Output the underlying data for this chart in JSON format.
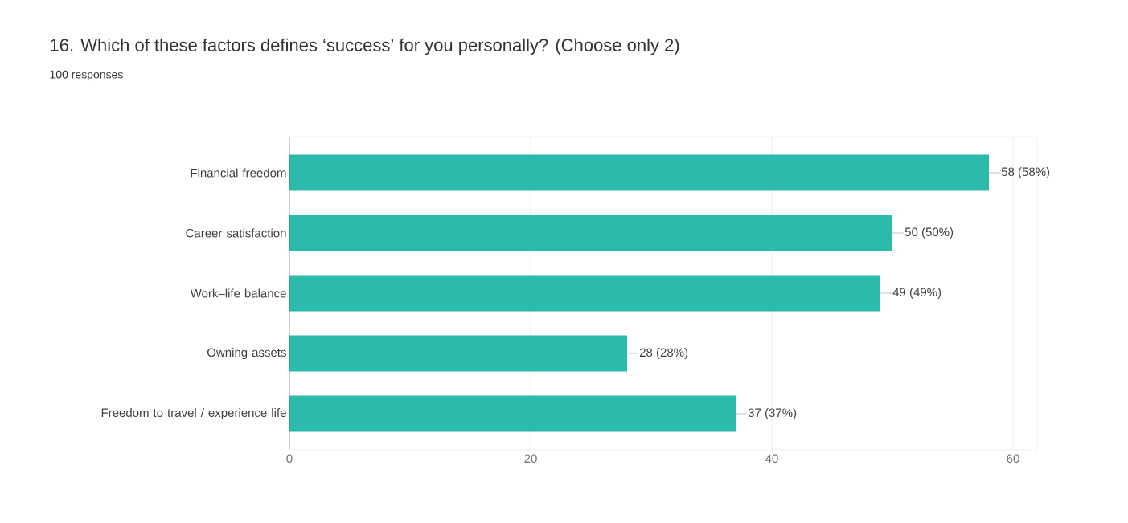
{
  "chart_data": {
    "type": "bar",
    "orientation": "horizontal",
    "title": "16. Which of these factors defines ‘success’ for you personally? (Choose only 2)",
    "subtitle": "100 responses",
    "categories": [
      "Financial freedom",
      "Career satisfaction",
      "Work–life balance",
      "Owning assets",
      "Freedom to travel / experience life"
    ],
    "values": [
      58,
      50,
      49,
      28,
      37
    ],
    "value_labels": [
      "58 (58%)",
      "50 (50%)",
      "49 (49%)",
      "28 (28%)",
      "37 (37%)"
    ],
    "color": "#2bbbad",
    "xlim": [
      0,
      62
    ],
    "xticks": [
      0,
      20,
      40,
      60
    ],
    "grid": "x"
  }
}
